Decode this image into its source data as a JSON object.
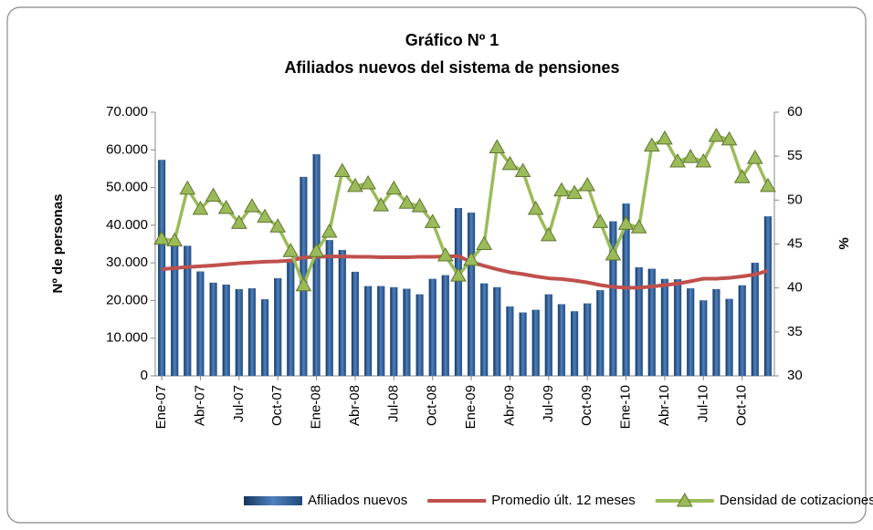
{
  "chart_data": {
    "type": "bar_line",
    "title": "Gráfico Nº 1",
    "subtitle": "Afiliados nuevos del sistema de pensiones",
    "y_label": "Nº de personas",
    "y2_label": "%",
    "categories": [
      "Ene-07",
      null,
      null,
      "Abr-07",
      null,
      null,
      "Jul-07",
      null,
      null,
      "Oct-07",
      null,
      null,
      "Ene-08",
      null,
      null,
      "Abr-08",
      null,
      null,
      "Jul-08",
      null,
      null,
      "Oct-08",
      null,
      null,
      "Ene-09",
      null,
      null,
      "Abr-09",
      null,
      null,
      "Jul-09",
      null,
      null,
      "Oct-09",
      null,
      null,
      "Ene-10",
      null,
      null,
      "Abr-10",
      null,
      null,
      "Jul-10",
      null,
      null,
      "Oct-10",
      null,
      null
    ],
    "series": [
      {
        "name": "Afiliados nuevos",
        "type": "bar",
        "color": "#2e5c9a",
        "values": [
          57300,
          35000,
          34500,
          27700,
          24700,
          24200,
          23000,
          23200,
          20300,
          25900,
          31000,
          52800,
          58800,
          36000,
          33400,
          27600,
          23800,
          23800,
          23500,
          23100,
          21600,
          25700,
          26700,
          44500,
          43300,
          24500,
          23500,
          18400,
          16800,
          17500,
          21600,
          19000,
          17100,
          19200,
          22700,
          41000,
          45700,
          28800,
          28400,
          25700,
          25600,
          23200,
          20000,
          23000,
          20400,
          24000,
          30000,
          42300
        ]
      },
      {
        "name": "Promedio últ. 12 meses",
        "type": "line",
        "color": "#c0504d",
        "values": [
          28300,
          28600,
          28900,
          29100,
          29300,
          29600,
          29900,
          30100,
          30300,
          30400,
          30600,
          31400,
          31600,
          31700,
          31700,
          31600,
          31600,
          31500,
          31500,
          31500,
          31600,
          31600,
          31700,
          31800,
          30200,
          29200,
          28300,
          27500,
          27000,
          26400,
          25900,
          25700,
          25300,
          24800,
          24100,
          23600,
          23400,
          23400,
          23700,
          24100,
          24500,
          25100,
          25800,
          25800,
          26000,
          26400,
          26900,
          27900
        ]
      },
      {
        "name": "Densidad de cotizaciones (%)",
        "type": "line_marker",
        "axis": "y2",
        "color": "#9bbb59",
        "values": [
          45.6,
          45.4,
          51.3,
          49.0,
          50.5,
          49.1,
          47.4,
          49.3,
          48.1,
          47.0,
          44.2,
          40.3,
          44.2,
          46.4,
          53.3,
          51.6,
          51.9,
          49.4,
          51.3,
          49.7,
          49.3,
          47.5,
          43.7,
          41.4,
          43.2,
          45.0,
          56.0,
          54.1,
          53.3,
          49.0,
          46.0,
          51.1,
          50.8,
          51.7,
          47.5,
          43.8,
          47.3,
          46.9,
          56.2,
          57.0,
          54.4,
          54.9,
          54.4,
          57.3,
          56.9,
          52.6,
          54.8,
          51.6
        ]
      }
    ],
    "ylim": [
      0,
      70000
    ],
    "yticks": [
      0,
      {
        "value": 10000,
        "label": "10.000"
      },
      {
        "value": 20000,
        "label": "20.000"
      },
      {
        "value": 30000,
        "label": "30.000"
      },
      {
        "value": 40000,
        "label": "40.000"
      },
      {
        "value": 50000,
        "label": "50.000"
      },
      {
        "value": 60000,
        "label": "60.000"
      },
      {
        "value": 70000,
        "label": "70.000"
      }
    ],
    "y2lim": [
      30,
      60
    ],
    "y2ticks": [
      30,
      35,
      40,
      45,
      50,
      55,
      60
    ],
    "grid": false,
    "legend": "bottom"
  }
}
